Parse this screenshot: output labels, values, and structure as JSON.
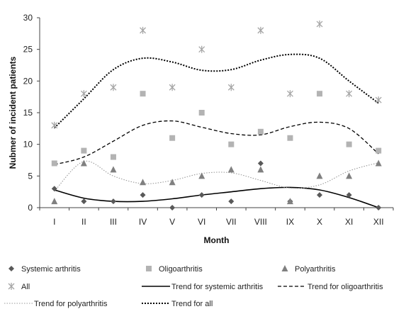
{
  "chart_data": {
    "type": "scatter",
    "title": "",
    "xlabel": "Month",
    "ylabel": "Nubmer of incident patients",
    "categories": [
      "I",
      "II",
      "III",
      "IV",
      "V",
      "VI",
      "VII",
      "VIII",
      "IX",
      "X",
      "XI",
      "XII"
    ],
    "ylim": [
      0,
      30
    ],
    "yticks": [
      0,
      5,
      10,
      15,
      20,
      25,
      30
    ],
    "grid": false,
    "legend_position": "bottom",
    "series": [
      {
        "name": "Systemic arthritis",
        "marker": "diamond",
        "color": "#595959",
        "values": [
          3,
          1,
          1,
          2,
          0,
          2,
          1,
          7,
          1,
          2,
          2,
          0
        ]
      },
      {
        "name": "Oligoarthritis",
        "marker": "square",
        "color": "#b3b3b3",
        "values": [
          7,
          9,
          8,
          18,
          11,
          15,
          10,
          12,
          11,
          18,
          10,
          9
        ]
      },
      {
        "name": "Polyarthritis",
        "marker": "triangle",
        "color": "#808080",
        "values": [
          1,
          7,
          6,
          4,
          4,
          5,
          6,
          6,
          1,
          5,
          5,
          7
        ]
      },
      {
        "name": "All",
        "marker": "asterisk",
        "color": "#a6a6a6",
        "values": [
          13,
          18,
          19,
          28,
          19,
          25,
          19,
          28,
          18,
          29,
          18,
          17
        ]
      }
    ],
    "trendlines": [
      {
        "name": "Trend for systemic arthritis",
        "style": "solid",
        "color": "#000000",
        "values": [
          2.8,
          1.5,
          1.0,
          1.0,
          1.4,
          2.0,
          2.5,
          3.0,
          3.2,
          2.8,
          1.6,
          0.0
        ]
      },
      {
        "name": "Trend for oligoarthritis",
        "style": "dashed",
        "color": "#000000",
        "values": [
          6.8,
          8.0,
          10.5,
          13.0,
          13.7,
          12.7,
          11.7,
          11.5,
          12.8,
          13.5,
          12.5,
          8.5
        ]
      },
      {
        "name": "Trend for polyarthritis",
        "style": "dotted",
        "color": "#9a9a9a",
        "values": [
          2.6,
          7.3,
          5.0,
          3.8,
          4.3,
          5.4,
          5.5,
          4.3,
          3.1,
          3.6,
          5.8,
          7.1
        ]
      },
      {
        "name": "Trend for all",
        "style": "dotted-heavy",
        "color": "#000000",
        "values": [
          12.6,
          17.2,
          21.8,
          23.6,
          23.0,
          21.7,
          21.8,
          23.3,
          24.2,
          23.6,
          20.0,
          16.5
        ]
      }
    ]
  }
}
